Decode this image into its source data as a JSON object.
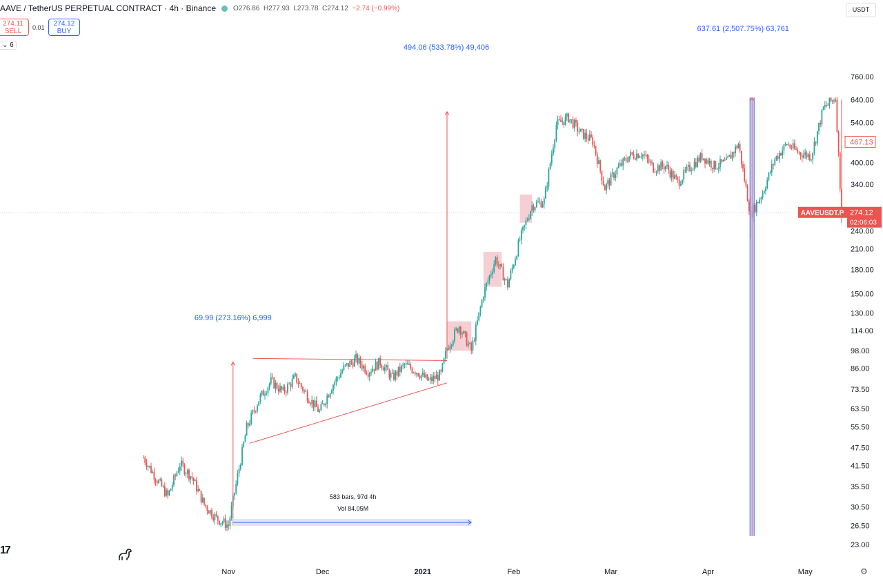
{
  "header": {
    "symbol": "AAVE / TetherUS PERPETUAL CONTRACT · 4h · Binance",
    "open": "O276.86",
    "high": "H277.93",
    "low": "L273.78",
    "close": "C274.12",
    "change": "−2.74 (−0.99%)"
  },
  "trade": {
    "sell_price": "274.11",
    "sell_label": "SELL",
    "spread": "0.01",
    "buy_price": "274.12",
    "buy_label": "BUY"
  },
  "indicator_toggle": "6",
  "currency_label": "USDT",
  "logo_text": "17",
  "colors": {
    "up": "#26a69a",
    "down": "#ef5350",
    "measure": "#2962ff",
    "drawing": "#ef5350",
    "highlight": "#f4c7cd"
  },
  "chart_data": {
    "type": "candlestick",
    "yscale": "log",
    "ylim": [
      23,
      760
    ],
    "y_ticks": [
      "760.00",
      "640.00",
      "540.00",
      "467.13",
      "400.00",
      "340.00",
      "274.12",
      "240.00",
      "210.00",
      "180.00",
      "150.00",
      "130.00",
      "114.00",
      "98.00",
      "86.00",
      "73.50",
      "63.50",
      "55.50",
      "47.50",
      "41.50",
      "35.50",
      "30.50",
      "26.50",
      "23.00"
    ],
    "x_ticks": [
      "Nov",
      "Dec",
      "2021",
      "Feb",
      "Mar",
      "Apr",
      "May"
    ],
    "last_price": 274.12,
    "last_price_symbol": "AAVEUSDT.P",
    "countdown": "02:06:03",
    "level_label": "467.13",
    "price_path": [
      [
        0,
        44
      ],
      [
        4,
        38
      ],
      [
        8,
        33
      ],
      [
        12,
        42
      ],
      [
        16,
        38
      ],
      [
        20,
        31
      ],
      [
        24,
        28
      ],
      [
        28,
        26.5
      ],
      [
        30,
        34
      ],
      [
        34,
        55
      ],
      [
        38,
        68
      ],
      [
        42,
        78
      ],
      [
        46,
        72
      ],
      [
        50,
        80
      ],
      [
        54,
        70
      ],
      [
        58,
        62
      ],
      [
        62,
        75
      ],
      [
        66,
        86
      ],
      [
        70,
        92
      ],
      [
        74,
        84
      ],
      [
        78,
        90
      ],
      [
        82,
        80
      ],
      [
        86,
        88
      ],
      [
        90,
        84
      ],
      [
        94,
        78
      ],
      [
        98,
        82
      ],
      [
        100,
        100
      ],
      [
        104,
        118
      ],
      [
        108,
        98
      ],
      [
        112,
        150
      ],
      [
        116,
        195
      ],
      [
        120,
        160
      ],
      [
        124,
        225
      ],
      [
        128,
        290
      ],
      [
        132,
        300
      ],
      [
        136,
        530
      ],
      [
        140,
        560
      ],
      [
        144,
        500
      ],
      [
        148,
        470
      ],
      [
        152,
        330
      ],
      [
        156,
        380
      ],
      [
        160,
        420
      ],
      [
        164,
        430
      ],
      [
        168,
        385
      ],
      [
        172,
        390
      ],
      [
        176,
        345
      ],
      [
        180,
        385
      ],
      [
        184,
        420
      ],
      [
        188,
        390
      ],
      [
        192,
        400
      ],
      [
        196,
        460
      ],
      [
        200,
        270
      ],
      [
        204,
        320
      ],
      [
        208,
        410
      ],
      [
        212,
        460
      ],
      [
        216,
        430
      ],
      [
        220,
        420
      ],
      [
        224,
        600
      ],
      [
        228,
        650
      ],
      [
        230,
        274.12
      ]
    ],
    "annotations": [
      {
        "label": "69.99 (273.16%) 6,999"
      },
      {
        "label": "494.06 (533.78%) 49,406"
      },
      {
        "label": "637.61 (2,507.75%) 63,761"
      },
      {
        "label": "583 bars, 97d 4h"
      },
      {
        "label": "Vol 84.05M"
      }
    ]
  }
}
